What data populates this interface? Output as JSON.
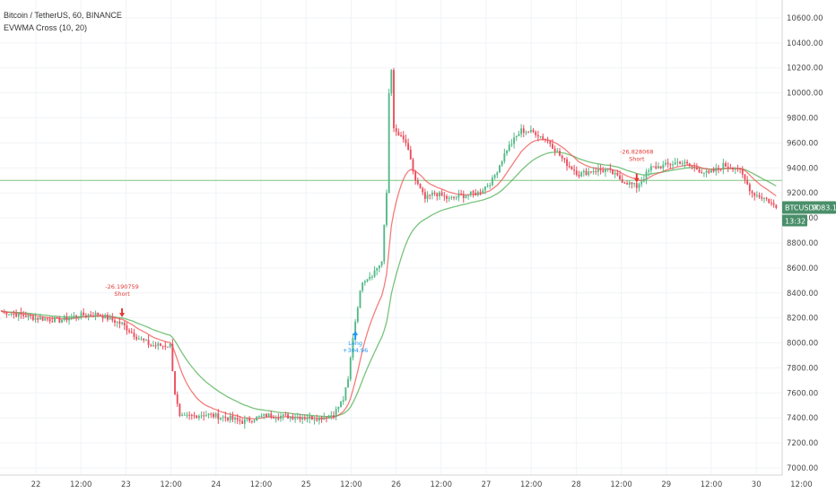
{
  "legend": {
    "symbol": "Bitcoin / TetherUS, 60, BINANCE",
    "indicator": "EVWMA Cross (10, 20)"
  },
  "price_badge": {
    "ticker": "BTCUSDT",
    "price": "9083.15",
    "countdown": "13:32"
  },
  "colors": {
    "up": "#53b987",
    "down": "#eb4d5c",
    "fast": "#ef5350",
    "slow": "#4caf50",
    "long": "#2196f3",
    "short": "#e53935",
    "badge": "#4a8f6a",
    "hline": "#4caf50"
  },
  "annotations": [
    {
      "kind": "short",
      "value": "-26.190759",
      "label": "Short"
    },
    {
      "kind": "long",
      "value": "+304.96",
      "label": "Long"
    },
    {
      "kind": "short",
      "value": "-26.828068",
      "label": "Short"
    }
  ],
  "chart_data": {
    "type": "candlestick",
    "ylim": [
      7000,
      10700
    ],
    "yticks": [
      7000,
      7200,
      7400,
      7600,
      7800,
      8000,
      8200,
      8400,
      8600,
      8800,
      9000,
      9200,
      9400,
      9600,
      9800,
      10000,
      10200,
      10400,
      10600
    ],
    "ytick_labels": [
      "7000.00",
      "7200.00",
      "7400.00",
      "7600.00",
      "7800.00",
      "8000.00",
      "8200.00",
      "8400.00",
      "8600.00",
      "8800.00",
      "9000.00",
      "9200.00",
      "9400.00",
      "9600.00",
      "9800.00",
      "10000.00",
      "10200.00",
      "10400.00",
      "10600.00"
    ],
    "xtick_labels": [
      "22",
      "12:00",
      "23",
      "12:00",
      "24",
      "12:00",
      "25",
      "12:00",
      "26",
      "12:00",
      "27",
      "12:00",
      "28",
      "12:00",
      "29",
      "12:00",
      "30",
      "12:00"
    ],
    "horizontal_line": 9300,
    "anchors": [
      [
        0,
        8250
      ],
      [
        14,
        8200
      ],
      [
        24,
        8180
      ],
      [
        32,
        8220
      ],
      [
        40,
        8230
      ],
      [
        50,
        8150
      ],
      [
        56,
        8050
      ],
      [
        62,
        7980
      ],
      [
        70,
        7980
      ],
      [
        72,
        7600
      ],
      [
        74,
        7400
      ],
      [
        84,
        7430
      ],
      [
        94,
        7400
      ],
      [
        100,
        7370
      ],
      [
        110,
        7420
      ],
      [
        120,
        7410
      ],
      [
        132,
        7400
      ],
      [
        138,
        7430
      ],
      [
        142,
        7550
      ],
      [
        144,
        7700
      ],
      [
        146,
        8050
      ],
      [
        148,
        8300
      ],
      [
        150,
        8500
      ],
      [
        154,
        8550
      ],
      [
        158,
        8650
      ],
      [
        160,
        9200
      ],
      [
        161,
        10000
      ],
      [
        162,
        10200
      ],
      [
        163,
        9700
      ],
      [
        168,
        9600
      ],
      [
        172,
        9300
      ],
      [
        176,
        9150
      ],
      [
        180,
        9200
      ],
      [
        186,
        9150
      ],
      [
        192,
        9180
      ],
      [
        198,
        9200
      ],
      [
        204,
        9300
      ],
      [
        210,
        9550
      ],
      [
        216,
        9700
      ],
      [
        222,
        9680
      ],
      [
        228,
        9600
      ],
      [
        234,
        9450
      ],
      [
        240,
        9350
      ],
      [
        246,
        9380
      ],
      [
        252,
        9380
      ],
      [
        258,
        9300
      ],
      [
        264,
        9250
      ],
      [
        270,
        9400
      ],
      [
        276,
        9420
      ],
      [
        282,
        9450
      ],
      [
        288,
        9400
      ],
      [
        294,
        9350
      ],
      [
        300,
        9420
      ],
      [
        306,
        9400
      ],
      [
        312,
        9200
      ],
      [
        318,
        9150
      ],
      [
        322,
        9080
      ]
    ],
    "fast_ema_period": 10,
    "slow_ema_period": 20,
    "candles_count": 323,
    "signals": [
      {
        "type": "short",
        "candle": 50
      },
      {
        "type": "long",
        "candle": 147
      },
      {
        "type": "short",
        "candle": 264
      }
    ],
    "last_price": 9083.15
  }
}
